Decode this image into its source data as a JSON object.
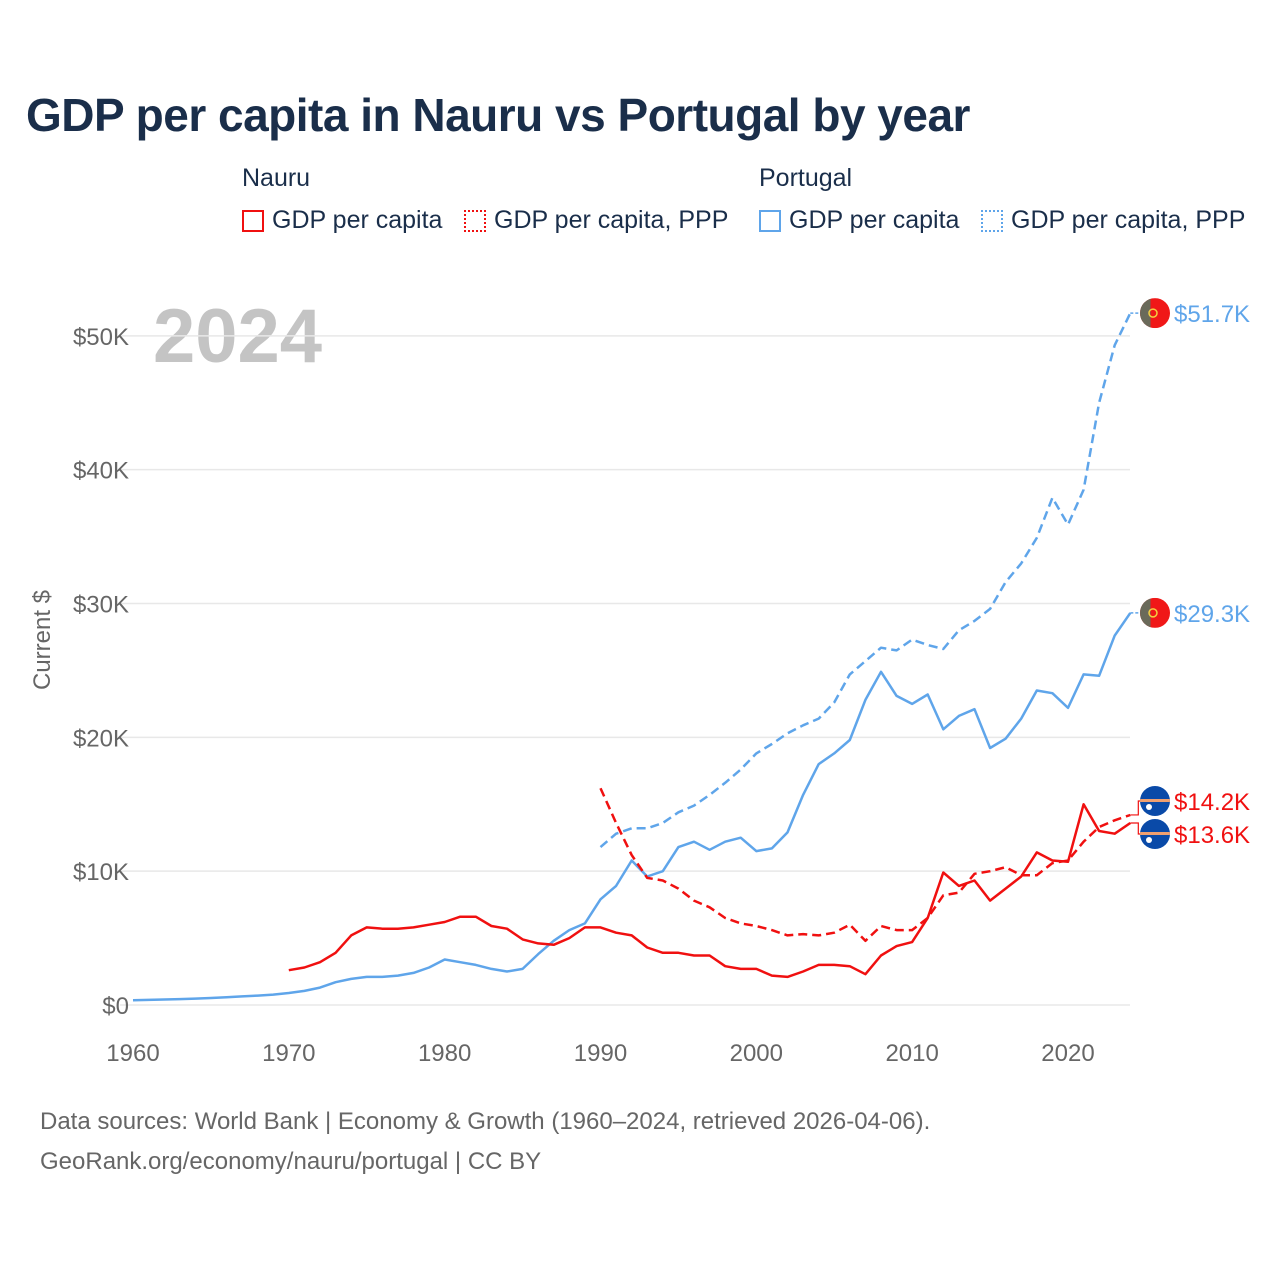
{
  "chart_data": {
    "type": "line",
    "title": "GDP per capita in Nauru vs Portugal by year",
    "ylabel": "Current $",
    "xlabel": "",
    "year_overlay": "2024",
    "xlim": [
      1960,
      2024
    ],
    "ylim": [
      0,
      52000
    ],
    "x_ticks": [
      1960,
      1970,
      1980,
      1990,
      2000,
      2010,
      2020
    ],
    "x_tick_labels": [
      "1960",
      "1970",
      "1980",
      "1990",
      "2000",
      "2010",
      "2020"
    ],
    "y_ticks": [
      0,
      10000,
      20000,
      30000,
      40000,
      50000
    ],
    "y_tick_labels": [
      "$0",
      "$10K",
      "$20K",
      "$30K",
      "$40K",
      "$50K"
    ],
    "grid": true,
    "legend": {
      "placement": "top",
      "groups": [
        {
          "name": "Nauru",
          "entries": [
            "GDP per capita",
            "GDP per capita, PPP"
          ]
        },
        {
          "name": "Portugal",
          "entries": [
            "GDP per capita",
            "GDP per capita, PPP"
          ]
        }
      ]
    },
    "series": [
      {
        "name": "Portugal GDP per capita",
        "country": "Portugal",
        "color": "#5fa5ea",
        "dash": false,
        "start": 1960,
        "values": [
          350,
          380,
          410,
          440,
          480,
          520,
          580,
          640,
          700,
          780,
          900,
          1050,
          1300,
          1700,
          1950,
          2100,
          2100,
          2200,
          2400,
          2800,
          3400,
          3200,
          3000,
          2700,
          2500,
          2700,
          3800,
          4800,
          5600,
          6100,
          7900,
          8900,
          10800,
          9600,
          10000,
          11800,
          12200,
          11600,
          12200,
          12500,
          11500,
          11700,
          12900,
          15700,
          18000,
          18800,
          19800,
          22800,
          24900,
          23100,
          22500,
          23200,
          20600,
          21600,
          22100,
          19200,
          19900,
          21400,
          23500,
          23300,
          22200,
          24700,
          24600,
          27600,
          29300
        ],
        "end_label": "$29.3K"
      },
      {
        "name": "Portugal GDP per capita, PPP",
        "country": "Portugal",
        "color": "#5fa5ea",
        "dash": true,
        "start": 1990,
        "values": [
          11800,
          12800,
          13200,
          13200,
          13600,
          14400,
          14900,
          15700,
          16600,
          17600,
          18800,
          19500,
          20300,
          20900,
          21400,
          22600,
          24700,
          25700,
          26700,
          26500,
          27300,
          26900,
          26600,
          28000,
          28700,
          29600,
          31600,
          33000,
          34900,
          37900,
          35900,
          38500,
          45000,
          49300,
          51700
        ],
        "end_label": "$51.7K"
      },
      {
        "name": "Nauru GDP per capita",
        "country": "Nauru",
        "color": "#f01010",
        "dash": false,
        "start": 1970,
        "values": [
          2600,
          2800,
          3200,
          3900,
          5200,
          5800,
          5700,
          5700,
          5800,
          6000,
          6200,
          6600,
          6600,
          5900,
          5700,
          4900,
          4600,
          4500,
          5000,
          5800,
          5800,
          5400,
          5200,
          4300,
          3900,
          3900,
          3700,
          3700,
          2900,
          2700,
          2700,
          2200,
          2100,
          2500,
          3000,
          3000,
          2900,
          2300,
          3700,
          4400,
          4700,
          6500,
          9900,
          8900,
          9300,
          7800,
          8700,
          9600,
          11400,
          10800,
          10700,
          15000,
          13000,
          12800,
          13600
        ],
        "end_label": "$13.6K"
      },
      {
        "name": "Nauru GDP per capita, PPP",
        "country": "Nauru",
        "color": "#f01010",
        "dash": true,
        "start": 1990,
        "values": [
          16200,
          13600,
          11200,
          9500,
          9300,
          8700,
          7800,
          7300,
          6500,
          6100,
          5900,
          5600,
          5200,
          5300,
          5200,
          5400,
          6000,
          4800,
          5900,
          5600,
          5600,
          6500,
          8200,
          8400,
          9800,
          10000,
          10300,
          9700,
          9700,
          10600,
          10800,
          12200,
          13300,
          13800,
          14200
        ],
        "end_label": "$14.2K"
      }
    ],
    "source_lines": [
      "Data sources: World Bank | Economy & Growth (1960–2024, retrieved 2026-04-06).",
      "GeoRank.org/economy/nauru/portugal | CC BY"
    ]
  }
}
